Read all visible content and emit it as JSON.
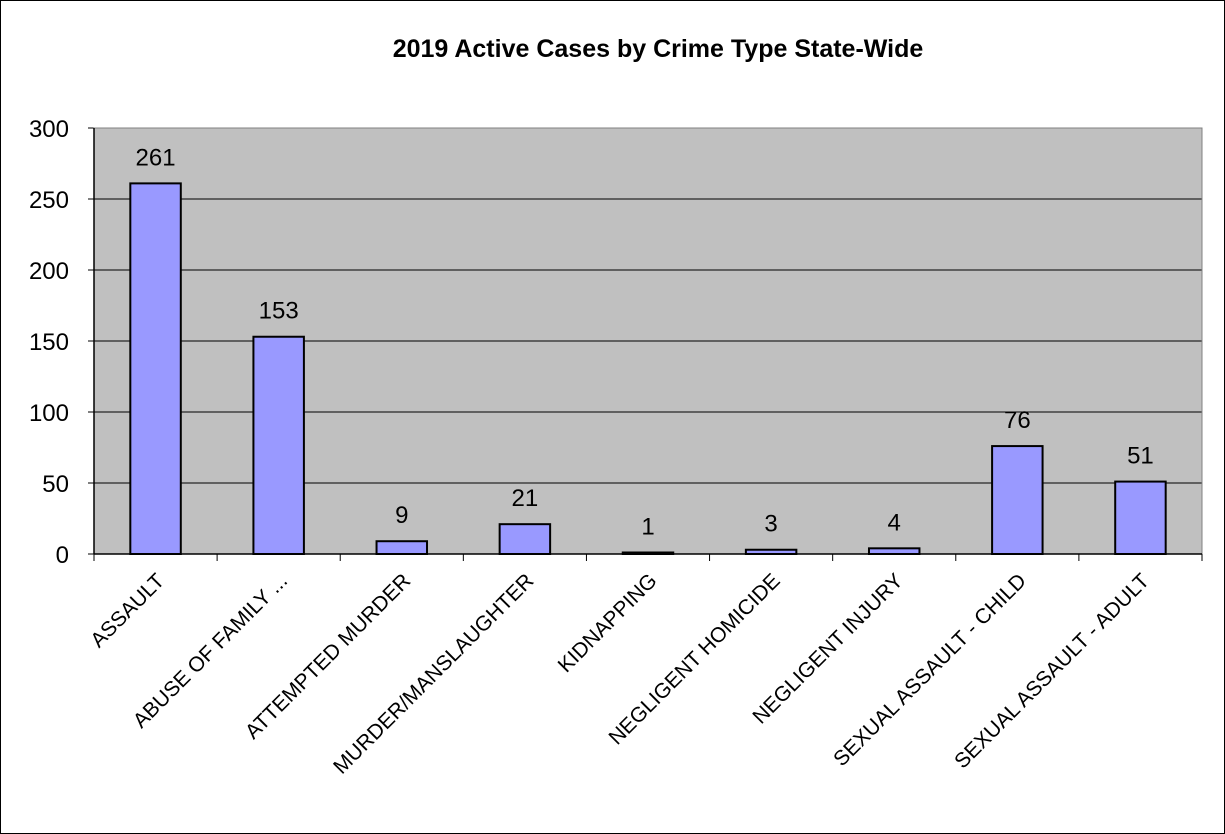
{
  "chart_data": {
    "type": "bar",
    "title": "2019 Active Cases by Crime Type State-Wide",
    "xlabel": "",
    "ylabel": "",
    "categories": [
      "ASSAULT",
      "ABUSE OF FAMILY ...",
      "ATTEMPTED MURDER",
      "MURDER/MANSLAUGHTER",
      "KIDNAPPING",
      "NEGLIGENT HOMICIDE",
      "NEGLIGENT INJURY",
      "SEXUAL ASSAULT - CHILD",
      "SEXUAL ASSAULT - ADULT"
    ],
    "values": [
      261,
      153,
      9,
      21,
      1,
      3,
      4,
      76,
      51
    ],
    "data_labels": [
      "261",
      "153",
      "9",
      "21",
      "1",
      "3",
      "4",
      "76",
      "51"
    ],
    "ylim": [
      0,
      300
    ],
    "yticks": [
      "0",
      "50",
      "100",
      "150",
      "200",
      "250",
      "300"
    ],
    "grid": true,
    "legend": "none",
    "colors": {
      "bar": "#9999ff",
      "bar_outline": "#000000",
      "plot_background": "#c0c0c0",
      "gridline": "#000000"
    }
  }
}
